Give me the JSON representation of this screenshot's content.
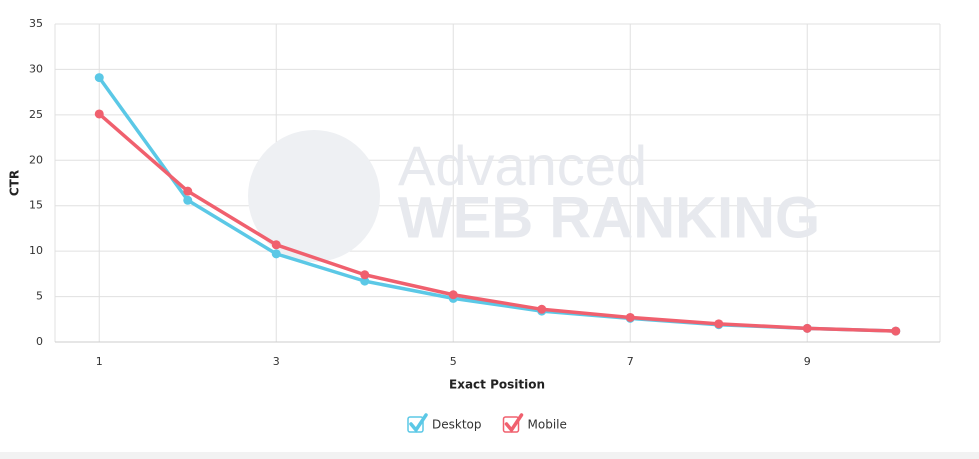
{
  "chart_data": {
    "type": "line",
    "x_label": "Exact Position",
    "y_label": "CTR",
    "watermark": [
      "Advanced",
      "WEB RANKING"
    ],
    "x": [
      1,
      2,
      3,
      4,
      5,
      6,
      7,
      8,
      9,
      10
    ],
    "series": [
      {
        "name": "Desktop",
        "color": "#5bc8e6",
        "values": [
          29.1,
          15.6,
          9.7,
          6.7,
          4.8,
          3.4,
          2.6,
          1.9,
          1.5,
          1.2
        ]
      },
      {
        "name": "Mobile",
        "color": "#f0606e",
        "values": [
          25.1,
          16.6,
          10.7,
          7.4,
          5.2,
          3.6,
          2.7,
          2.0,
          1.5,
          1.2
        ]
      }
    ],
    "xlim": [
      0.5,
      10.5
    ],
    "xticks": [
      1,
      3,
      5,
      7,
      9
    ],
    "ylim": [
      0,
      35
    ],
    "yticks": [
      0,
      5,
      10,
      15,
      20,
      25,
      30,
      35
    ],
    "grid": true,
    "legend": "bottom"
  }
}
